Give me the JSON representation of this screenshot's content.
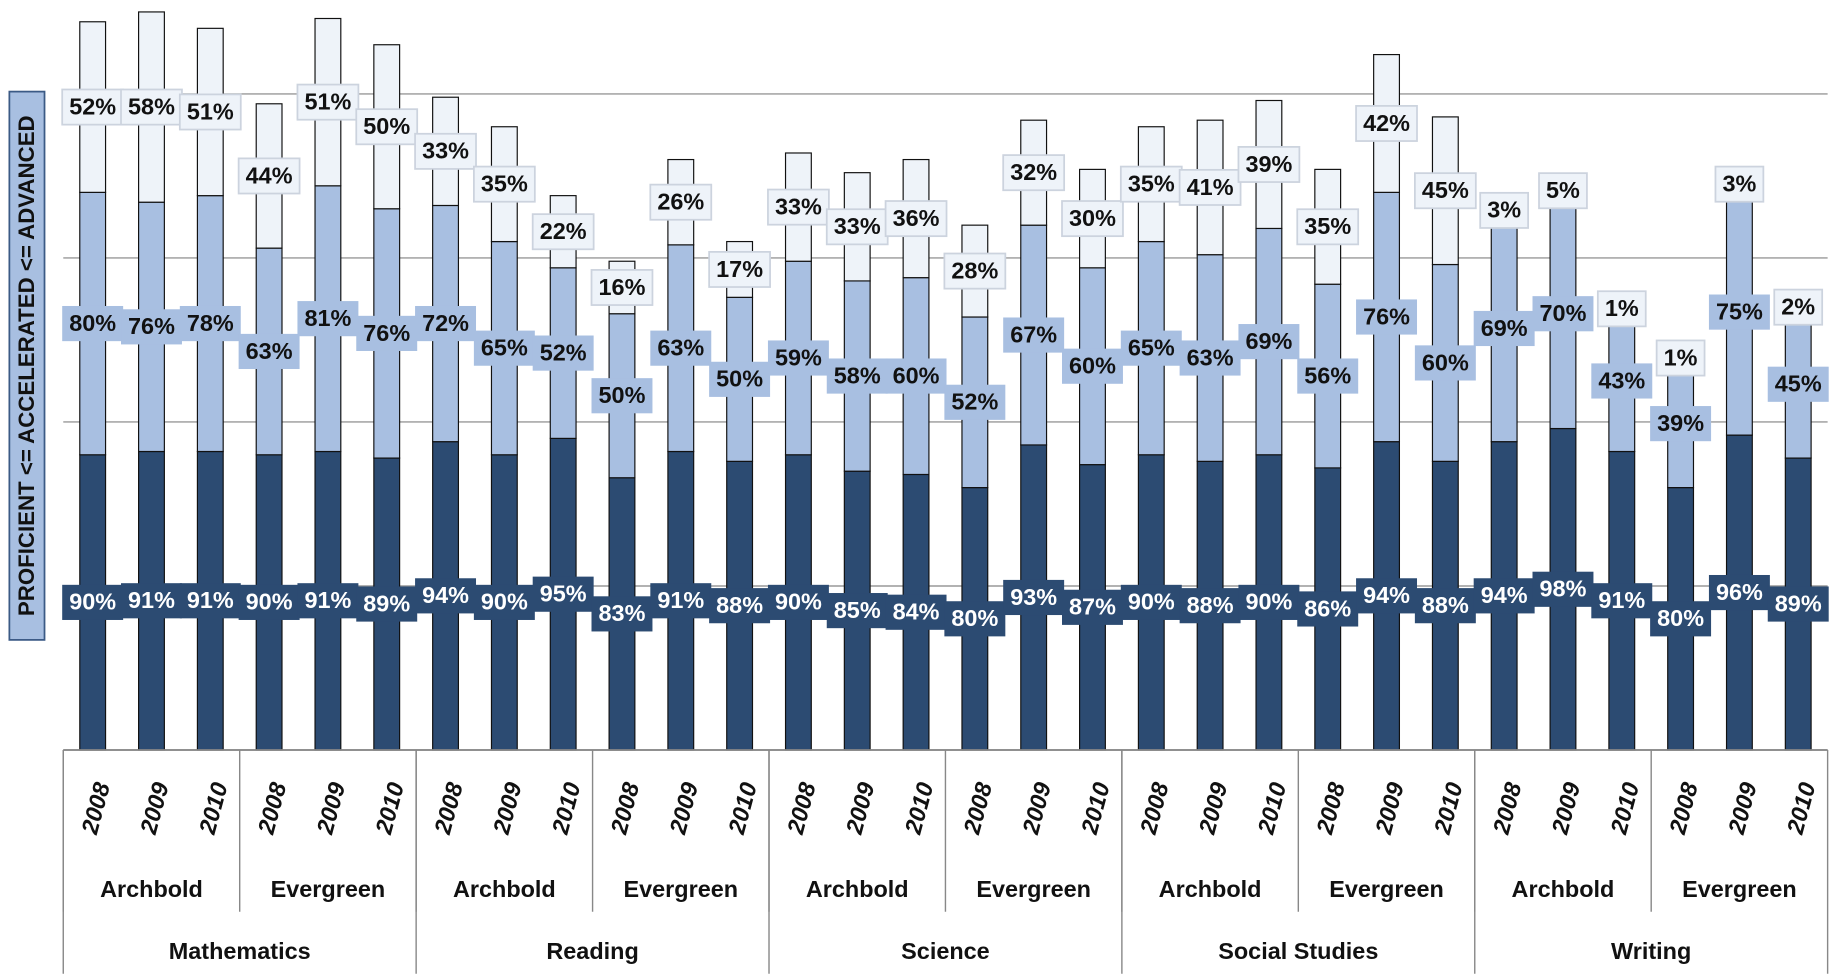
{
  "chart_data": {
    "type": "stacked_bar",
    "y_label": "PROFICIENT <= ACCELERATED <= ADVANCED",
    "categories": [
      "2008",
      "2009",
      "2010",
      "2008",
      "2009",
      "2010",
      "2008",
      "2009",
      "2010",
      "2008",
      "2009",
      "2010",
      "2008",
      "2009",
      "2010",
      "2008",
      "2009",
      "2010",
      "2008",
      "2009",
      "2010",
      "2008",
      "2009",
      "2010",
      "2008",
      "2009",
      "2010",
      "2008",
      "2009",
      "2010"
    ],
    "schools": [
      "Archbold",
      "Evergreen",
      "Archbold",
      "Evergreen",
      "Archbold",
      "Evergreen",
      "Archbold",
      "Evergreen",
      "Archbold",
      "Evergreen"
    ],
    "subjects": [
      "Mathematics",
      "Reading",
      "Science",
      "Social Studies",
      "Writing"
    ],
    "series": [
      {
        "color": "#2c4b72",
        "label_color": "#ffffff",
        "values": [
          90,
          91,
          91,
          90,
          91,
          89,
          94,
          90,
          95,
          83,
          91,
          88,
          90,
          85,
          84,
          80,
          93,
          87,
          90,
          88,
          90,
          86,
          94,
          88,
          94,
          98,
          91,
          80,
          96,
          89
        ],
        "value_labels": [
          "90%",
          "91%",
          "91%",
          "90%",
          "91%",
          "89%",
          "94%",
          "90%",
          "95%",
          "83%",
          "91%",
          "88%",
          "90%",
          "85%",
          "84%",
          "80%",
          "93%",
          "87%",
          "90%",
          "88%",
          "90%",
          "86%",
          "94%",
          "88%",
          "94%",
          "98%",
          "91%",
          "80%",
          "96%",
          "89%"
        ]
      },
      {
        "color": "#a8bfe1",
        "label_color": "#111111",
        "values": [
          80,
          76,
          78,
          63,
          81,
          76,
          72,
          65,
          52,
          50,
          63,
          50,
          59,
          58,
          60,
          52,
          67,
          60,
          65,
          63,
          69,
          56,
          76,
          60,
          69,
          70,
          43,
          39,
          75,
          45
        ],
        "value_labels": [
          "80%",
          "76%",
          "78%",
          "63%",
          "81%",
          "76%",
          "72%",
          "65%",
          "52%",
          "50%",
          "63%",
          "50%",
          "59%",
          "58%",
          "60%",
          "52%",
          "67%",
          "60%",
          "65%",
          "63%",
          "69%",
          "56%",
          "76%",
          "60%",
          "69%",
          "70%",
          "43%",
          "39%",
          "75%",
          "45%"
        ]
      },
      {
        "color": "#eef3f9",
        "label_color": "#111111",
        "values": [
          52,
          58,
          51,
          44,
          51,
          50,
          33,
          35,
          22,
          16,
          26,
          17,
          33,
          33,
          36,
          28,
          32,
          30,
          35,
          41,
          39,
          35,
          42,
          45,
          3,
          5,
          1,
          1,
          3,
          2
        ],
        "value_labels": [
          "52%",
          "58%",
          "51%",
          "44%",
          "51%",
          "50%",
          "33%",
          "35%",
          "22%",
          "16%",
          "26%",
          "17%",
          "33%",
          "33%",
          "36%",
          "28%",
          "32%",
          "30%",
          "35%",
          "41%",
          "39%",
          "35%",
          "42%",
          "45%",
          "3%",
          "5%",
          "1%",
          "1%",
          "3%",
          "2%"
        ]
      }
    ],
    "ylim": [
      0,
      228
    ],
    "yticks": [
      0,
      50,
      100,
      150,
      200
    ],
    "grid": true
  }
}
